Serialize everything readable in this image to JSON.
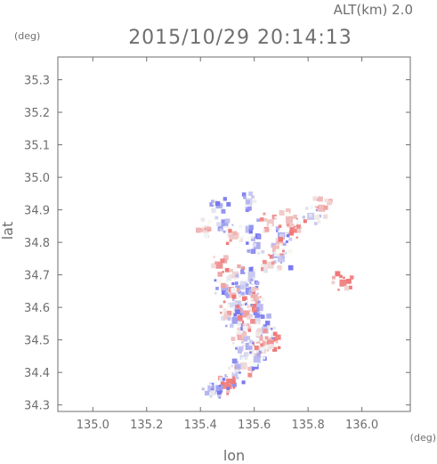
{
  "chart_data": {
    "type": "heatmap",
    "title": "2015/10/29 20:14:13",
    "altitude_label": "ALT(km) 2.0",
    "xlabel": "lon",
    "ylabel": "lat",
    "x_unit": "(deg)",
    "y_unit": "(deg)",
    "xlim": [
      134.87,
      136.18
    ],
    "ylim": [
      34.28,
      35.37
    ],
    "xticks": [
      135.0,
      135.2,
      135.4,
      135.6,
      135.8,
      136.0
    ],
    "xtick_labels": [
      "135.0",
      "135.2",
      "135.4",
      "135.6",
      "135.8",
      "136.0"
    ],
    "yticks": [
      34.3,
      34.4,
      34.5,
      34.6,
      34.7,
      34.8,
      34.9,
      35.0,
      35.1,
      35.2,
      35.3
    ],
    "ytick_labels": [
      "34.3",
      "34.4",
      "34.5",
      "34.6",
      "34.7",
      "34.8",
      "34.9",
      "35.0",
      "35.1",
      "35.2",
      "35.3"
    ],
    "grid": false,
    "colors": {
      "positive": "#f07878",
      "negative": "#7878f0",
      "axis": "#6e6e6e"
    },
    "patches": [
      {
        "lon": 135.47,
        "lat": 34.915,
        "v": -0.6
      },
      {
        "lon": 135.58,
        "lat": 34.925,
        "v": -0.3
      },
      {
        "lon": 135.49,
        "lat": 34.86,
        "v": -0.7
      },
      {
        "lon": 135.42,
        "lat": 34.84,
        "v": 0.3
      },
      {
        "lon": 135.53,
        "lat": 34.82,
        "v": 0.4
      },
      {
        "lon": 135.58,
        "lat": 34.84,
        "v": -0.5
      },
      {
        "lon": 135.66,
        "lat": 34.86,
        "v": 0.4
      },
      {
        "lon": 135.7,
        "lat": 34.82,
        "v": -0.6
      },
      {
        "lon": 135.73,
        "lat": 34.87,
        "v": 0.5
      },
      {
        "lon": 135.76,
        "lat": 34.84,
        "v": 0.9
      },
      {
        "lon": 135.81,
        "lat": 34.88,
        "v": -0.4
      },
      {
        "lon": 135.85,
        "lat": 34.905,
        "v": 0.5
      },
      {
        "lon": 135.61,
        "lat": 34.79,
        "v": -0.6
      },
      {
        "lon": 135.68,
        "lat": 34.78,
        "v": 0.5
      },
      {
        "lon": 135.7,
        "lat": 34.75,
        "v": -0.4
      },
      {
        "lon": 135.66,
        "lat": 34.73,
        "v": 0.3
      },
      {
        "lon": 135.47,
        "lat": 34.73,
        "v": 0.8
      },
      {
        "lon": 135.93,
        "lat": 34.675,
        "v": 0.9
      },
      {
        "lon": 135.53,
        "lat": 34.7,
        "v": 0.3
      },
      {
        "lon": 135.59,
        "lat": 34.7,
        "v": -0.4
      },
      {
        "lon": 135.56,
        "lat": 34.67,
        "v": -0.3
      },
      {
        "lon": 135.49,
        "lat": 34.66,
        "v": -0.6
      },
      {
        "lon": 135.52,
        "lat": 34.64,
        "v": 0.5
      },
      {
        "lon": 135.58,
        "lat": 34.65,
        "v": -0.8
      },
      {
        "lon": 135.6,
        "lat": 34.63,
        "v": 0.6
      },
      {
        "lon": 135.54,
        "lat": 34.61,
        "v": -0.4
      },
      {
        "lon": 135.62,
        "lat": 34.6,
        "v": -0.5
      },
      {
        "lon": 135.5,
        "lat": 34.58,
        "v": 0.3
      },
      {
        "lon": 135.57,
        "lat": 34.58,
        "v": 0.7
      },
      {
        "lon": 135.61,
        "lat": 34.56,
        "v": -0.3
      },
      {
        "lon": 135.53,
        "lat": 34.56,
        "v": -0.7
      },
      {
        "lon": 135.57,
        "lat": 34.54,
        "v": 0.5
      },
      {
        "lon": 135.64,
        "lat": 34.53,
        "v": -0.4
      },
      {
        "lon": 135.55,
        "lat": 34.51,
        "v": 0.6
      },
      {
        "lon": 135.62,
        "lat": 34.5,
        "v": 0.6
      },
      {
        "lon": 135.66,
        "lat": 34.49,
        "v": 0.8
      },
      {
        "lon": 135.58,
        "lat": 34.48,
        "v": -0.6
      },
      {
        "lon": 135.63,
        "lat": 34.47,
        "v": 0.4
      },
      {
        "lon": 135.56,
        "lat": 34.45,
        "v": -0.3
      },
      {
        "lon": 135.61,
        "lat": 34.44,
        "v": -0.5
      },
      {
        "lon": 135.56,
        "lat": 34.42,
        "v": 0.3
      },
      {
        "lon": 135.53,
        "lat": 34.39,
        "v": -0.4
      },
      {
        "lon": 135.49,
        "lat": 34.36,
        "v": 0.9
      },
      {
        "lon": 135.47,
        "lat": 34.35,
        "v": -0.7
      },
      {
        "lon": 135.44,
        "lat": 34.35,
        "v": -0.5
      }
    ]
  }
}
